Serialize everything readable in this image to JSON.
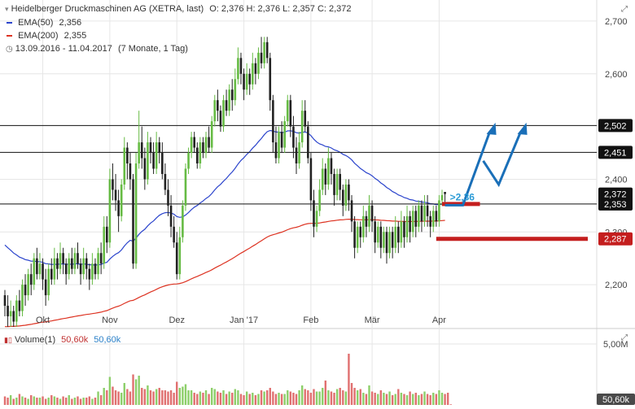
{
  "header": {
    "instrument": "Heidelberger Druckmaschinen AG (XETRA, last)",
    "ohlc": "O: 2,376  H: 2,376  L: 2,357  C: 2,372",
    "ema50_label": "EMA(50)",
    "ema50_value": "2,356",
    "ema200_label": "EMA(200)",
    "ema200_value": "2,355",
    "period": "13.09.2016 - 11.04.2017",
    "period_note": "(7 Monate, 1 Tag)"
  },
  "volume_panel": {
    "label": "Volume(1)",
    "value_red": "50,60k",
    "value_blue": "50,60k"
  },
  "colors": {
    "up": "#66bb44",
    "down": "#222222",
    "ema50": "#2b44cc",
    "ema200": "#dd3322",
    "level_line": "#111111",
    "red_marker": "#c41e1e",
    "arrow": "#1a6fb8",
    "arrow_text": "#2a9bd6",
    "grid": "#e6e6e6"
  },
  "chart_data": {
    "type": "candlestick",
    "ylim": [
      2.12,
      2.74
    ],
    "y_ticks": [
      {
        "v": 2.2,
        "label": "2,200"
      },
      {
        "v": 2.3,
        "label": "2,300"
      },
      {
        "v": 2.4,
        "label": "2,400"
      },
      {
        "v": 2.6,
        "label": "2,600"
      },
      {
        "v": 2.7,
        "label": "2,700"
      }
    ],
    "x_labels": [
      {
        "i": 13,
        "label": "Okt"
      },
      {
        "i": 36,
        "label": "Nov"
      },
      {
        "i": 59,
        "label": "Dez"
      },
      {
        "i": 82,
        "label": "Jan '17"
      },
      {
        "i": 105,
        "label": "Feb"
      },
      {
        "i": 126,
        "label": "Mär"
      },
      {
        "i": 149,
        "label": "Apr"
      }
    ],
    "horizontal_lines": [
      {
        "value": 2.502,
        "label": "2,502"
      },
      {
        "value": 2.451,
        "label": "2,451"
      },
      {
        "value": 2.353,
        "label": "2,353"
      }
    ],
    "price_badges": [
      {
        "value": 2.372,
        "label": "2,372"
      },
      {
        "value": 2.287,
        "label": "2,287"
      }
    ],
    "annotation": {
      "text": ">2,36",
      "level": 2.36
    },
    "red_markers": [
      {
        "from_i": 150,
        "to_i": 163,
        "value": 2.353
      },
      {
        "from_i": 148,
        "to_i": 200,
        "value": 2.287
      }
    ],
    "ema50_label": "EMA(50)",
    "ema200_label": "EMA(200)",
    "candles": [
      [
        2.18,
        2.16,
        2.19,
        2.14
      ],
      [
        2.16,
        2.14,
        2.18,
        2.12
      ],
      [
        2.14,
        2.15,
        2.17,
        2.12
      ],
      [
        2.15,
        2.13,
        2.16,
        2.12
      ],
      [
        2.13,
        2.17,
        2.18,
        2.12
      ],
      [
        2.17,
        2.15,
        2.19,
        2.14
      ],
      [
        2.15,
        2.2,
        2.21,
        2.14
      ],
      [
        2.2,
        2.18,
        2.22,
        2.16
      ],
      [
        2.18,
        2.22,
        2.23,
        2.17
      ],
      [
        2.22,
        2.2,
        2.24,
        2.18
      ],
      [
        2.2,
        2.25,
        2.26,
        2.19
      ],
      [
        2.25,
        2.22,
        2.27,
        2.21
      ],
      [
        2.22,
        2.24,
        2.26,
        2.21
      ],
      [
        2.24,
        2.21,
        2.25,
        2.19
      ],
      [
        2.21,
        2.18,
        2.23,
        2.16
      ],
      [
        2.18,
        2.23,
        2.24,
        2.17
      ],
      [
        2.23,
        2.21,
        2.25,
        2.2
      ],
      [
        2.21,
        2.25,
        2.27,
        2.2
      ],
      [
        2.25,
        2.23,
        2.26,
        2.21
      ],
      [
        2.23,
        2.26,
        2.28,
        2.22
      ],
      [
        2.26,
        2.24,
        2.27,
        2.22
      ],
      [
        2.24,
        2.22,
        2.25,
        2.2
      ],
      [
        2.22,
        2.25,
        2.26,
        2.21
      ],
      [
        2.25,
        2.23,
        2.27,
        2.22
      ],
      [
        2.23,
        2.26,
        2.27,
        2.22
      ],
      [
        2.26,
        2.24,
        2.28,
        2.23
      ],
      [
        2.24,
        2.22,
        2.25,
        2.2
      ],
      [
        2.22,
        2.25,
        2.27,
        2.21
      ],
      [
        2.25,
        2.23,
        2.26,
        2.21
      ],
      [
        2.23,
        2.21,
        2.24,
        2.19
      ],
      [
        2.21,
        2.24,
        2.26,
        2.2
      ],
      [
        2.24,
        2.22,
        2.25,
        2.21
      ],
      [
        2.22,
        2.26,
        2.27,
        2.21
      ],
      [
        2.26,
        2.24,
        2.28,
        2.22
      ],
      [
        2.24,
        2.31,
        2.33,
        2.23
      ],
      [
        2.31,
        2.28,
        2.33,
        2.26
      ],
      [
        2.28,
        2.4,
        2.42,
        2.27
      ],
      [
        2.4,
        2.38,
        2.43,
        2.36
      ],
      [
        2.38,
        2.36,
        2.41,
        2.34
      ],
      [
        2.36,
        2.33,
        2.38,
        2.3
      ],
      [
        2.33,
        2.39,
        2.4,
        2.32
      ],
      [
        2.39,
        2.46,
        2.48,
        2.38
      ],
      [
        2.46,
        2.43,
        2.47,
        2.4
      ],
      [
        2.43,
        2.4,
        2.45,
        2.38
      ],
      [
        2.4,
        2.24,
        2.41,
        2.23
      ],
      [
        2.24,
        2.43,
        2.45,
        2.23
      ],
      [
        2.43,
        2.47,
        2.53,
        2.42
      ],
      [
        2.47,
        2.44,
        2.5,
        2.42
      ],
      [
        2.44,
        2.4,
        2.46,
        2.38
      ],
      [
        2.4,
        2.47,
        2.49,
        2.39
      ],
      [
        2.47,
        2.45,
        2.48,
        2.43
      ],
      [
        2.45,
        2.42,
        2.47,
        2.41
      ],
      [
        2.42,
        2.47,
        2.49,
        2.41
      ],
      [
        2.47,
        2.45,
        2.48,
        2.43
      ],
      [
        2.45,
        2.41,
        2.47,
        2.4
      ],
      [
        2.41,
        2.38,
        2.43,
        2.37
      ],
      [
        2.38,
        2.35,
        2.4,
        2.33
      ],
      [
        2.35,
        2.31,
        2.37,
        2.29
      ],
      [
        2.31,
        2.28,
        2.33,
        2.27
      ],
      [
        2.28,
        2.22,
        2.3,
        2.21
      ],
      [
        2.22,
        2.29,
        2.31,
        2.21
      ],
      [
        2.29,
        2.35,
        2.36,
        2.28
      ],
      [
        2.35,
        2.42,
        2.43,
        2.34
      ],
      [
        2.42,
        2.45,
        2.46,
        2.41
      ],
      [
        2.45,
        2.48,
        2.49,
        2.44
      ],
      [
        2.48,
        2.46,
        2.49,
        2.45
      ],
      [
        2.46,
        2.43,
        2.47,
        2.42
      ],
      [
        2.43,
        2.47,
        2.48,
        2.42
      ],
      [
        2.47,
        2.45,
        2.48,
        2.44
      ],
      [
        2.45,
        2.48,
        2.49,
        2.44
      ],
      [
        2.48,
        2.46,
        2.5,
        2.45
      ],
      [
        2.46,
        2.51,
        2.52,
        2.45
      ],
      [
        2.51,
        2.55,
        2.56,
        2.5
      ],
      [
        2.55,
        2.53,
        2.57,
        2.51
      ],
      [
        2.53,
        2.5,
        2.54,
        2.49
      ],
      [
        2.5,
        2.55,
        2.56,
        2.49
      ],
      [
        2.55,
        2.53,
        2.57,
        2.52
      ],
      [
        2.53,
        2.57,
        2.58,
        2.52
      ],
      [
        2.57,
        2.55,
        2.59,
        2.53
      ],
      [
        2.55,
        2.59,
        2.61,
        2.54
      ],
      [
        2.59,
        2.63,
        2.65,
        2.58
      ],
      [
        2.63,
        2.6,
        2.64,
        2.58
      ],
      [
        2.6,
        2.57,
        2.61,
        2.55
      ],
      [
        2.57,
        2.6,
        2.62,
        2.56
      ],
      [
        2.6,
        2.58,
        2.61,
        2.56
      ],
      [
        2.58,
        2.62,
        2.64,
        2.57
      ],
      [
        2.62,
        2.6,
        2.63,
        2.58
      ],
      [
        2.6,
        2.64,
        2.65,
        2.59
      ],
      [
        2.64,
        2.62,
        2.67,
        2.61
      ],
      [
        2.62,
        2.66,
        2.67,
        2.61
      ],
      [
        2.66,
        2.63,
        2.67,
        2.62
      ],
      [
        2.63,
        2.55,
        2.64,
        2.53
      ],
      [
        2.55,
        2.47,
        2.56,
        2.45
      ],
      [
        2.47,
        2.44,
        2.5,
        2.43
      ],
      [
        2.44,
        2.49,
        2.5,
        2.43
      ],
      [
        2.49,
        2.46,
        2.51,
        2.45
      ],
      [
        2.46,
        2.51,
        2.52,
        2.45
      ],
      [
        2.51,
        2.55,
        2.56,
        2.5
      ],
      [
        2.55,
        2.5,
        2.56,
        2.48
      ],
      [
        2.5,
        2.46,
        2.52,
        2.44
      ],
      [
        2.46,
        2.43,
        2.48,
        2.41
      ],
      [
        2.43,
        2.47,
        2.49,
        2.42
      ],
      [
        2.47,
        2.53,
        2.55,
        2.46
      ],
      [
        2.53,
        2.5,
        2.55,
        2.49
      ],
      [
        2.5,
        2.44,
        2.51,
        2.43
      ],
      [
        2.44,
        2.36,
        2.45,
        2.34
      ],
      [
        2.36,
        2.31,
        2.38,
        2.29
      ],
      [
        2.31,
        2.34,
        2.35,
        2.3
      ],
      [
        2.34,
        2.38,
        2.4,
        2.33
      ],
      [
        2.38,
        2.42,
        2.44,
        2.37
      ],
      [
        2.42,
        2.39,
        2.43,
        2.37
      ],
      [
        2.39,
        2.44,
        2.46,
        2.38
      ],
      [
        2.44,
        2.41,
        2.45,
        2.39
      ],
      [
        2.41,
        2.37,
        2.42,
        2.35
      ],
      [
        2.37,
        2.41,
        2.42,
        2.36
      ],
      [
        2.41,
        2.38,
        2.42,
        2.36
      ],
      [
        2.38,
        2.35,
        2.39,
        2.33
      ],
      [
        2.35,
        2.39,
        2.4,
        2.34
      ],
      [
        2.39,
        2.36,
        2.4,
        2.34
      ],
      [
        2.36,
        2.32,
        2.37,
        2.3
      ],
      [
        2.32,
        2.27,
        2.33,
        2.25
      ],
      [
        2.27,
        2.31,
        2.32,
        2.26
      ],
      [
        2.31,
        2.29,
        2.32,
        2.27
      ],
      [
        2.29,
        2.33,
        2.35,
        2.28
      ],
      [
        2.33,
        2.31,
        2.34,
        2.29
      ],
      [
        2.31,
        2.35,
        2.37,
        2.3
      ],
      [
        2.35,
        2.32,
        2.36,
        2.3
      ],
      [
        2.32,
        2.28,
        2.33,
        2.26
      ],
      [
        2.28,
        2.31,
        2.32,
        2.27
      ],
      [
        2.31,
        2.27,
        2.32,
        2.25
      ],
      [
        2.27,
        2.3,
        2.31,
        2.26
      ],
      [
        2.3,
        2.26,
        2.31,
        2.24
      ],
      [
        2.26,
        2.3,
        2.31,
        2.25
      ],
      [
        2.3,
        2.27,
        2.31,
        2.25
      ],
      [
        2.27,
        2.31,
        2.33,
        2.26
      ],
      [
        2.31,
        2.28,
        2.32,
        2.26
      ],
      [
        2.28,
        2.32,
        2.34,
        2.27
      ],
      [
        2.32,
        2.29,
        2.33,
        2.27
      ],
      [
        2.29,
        2.33,
        2.35,
        2.28
      ],
      [
        2.33,
        2.3,
        2.34,
        2.28
      ],
      [
        2.3,
        2.34,
        2.35,
        2.29
      ],
      [
        2.34,
        2.31,
        2.35,
        2.29
      ],
      [
        2.31,
        2.35,
        2.36,
        2.3
      ],
      [
        2.35,
        2.32,
        2.36,
        2.3
      ],
      [
        2.32,
        2.35,
        2.37,
        2.31
      ],
      [
        2.35,
        2.33,
        2.37,
        2.31
      ],
      [
        2.33,
        2.31,
        2.34,
        2.29
      ],
      [
        2.31,
        2.34,
        2.35,
        2.3
      ],
      [
        2.34,
        2.32,
        2.35,
        2.31
      ],
      [
        2.32,
        2.36,
        2.37,
        2.31
      ],
      [
        2.36,
        2.37,
        2.38,
        2.35
      ],
      [
        2.376,
        2.372,
        2.376,
        2.357
      ]
    ],
    "volume": {
      "ylim": [
        0,
        6
      ],
      "y_ticks": [
        {
          "v": 5,
          "label": "5,00M"
        }
      ],
      "last_label": "50,60k",
      "values": [
        0.7,
        0.6,
        0.8,
        0.5,
        0.6,
        0.9,
        0.7,
        0.6,
        0.5,
        0.8,
        0.7,
        0.6,
        0.6,
        0.7,
        0.5,
        0.6,
        0.8,
        0.7,
        0.6,
        0.5,
        0.7,
        0.6,
        0.8,
        0.5,
        0.6,
        0.7,
        0.5,
        0.6,
        0.6,
        0.7,
        0.5,
        0.6,
        1.1,
        0.8,
        1.4,
        1.2,
        2.3,
        1.5,
        1.2,
        1.1,
        1.0,
        1.8,
        1.3,
        1.1,
        2.5,
        2.1,
        2.4,
        1.4,
        1.3,
        1.6,
        1.2,
        1.1,
        1.3,
        1.4,
        1.2,
        1.2,
        1.1,
        1.2,
        1.0,
        1.9,
        1.4,
        1.5,
        1.7,
        1.2,
        1.2,
        1.0,
        0.9,
        1.1,
        1.0,
        1.2,
        0.9,
        1.4,
        1.3,
        1.1,
        1.0,
        1.2,
        0.9,
        1.1,
        1.0,
        1.3,
        1.2,
        0.9,
        0.8,
        1.1,
        0.9,
        1.0,
        0.8,
        0.9,
        1.2,
        1.1,
        1.2,
        1.4,
        1.1,
        0.9,
        1.0,
        0.9,
        0.9,
        1.2,
        1.1,
        1.0,
        0.9,
        1.2,
        1.6,
        1.3,
        1.2,
        1.0,
        1.3,
        1.1,
        1.1,
        1.4,
        2.0,
        1.2,
        1.1,
        1.0,
        1.3,
        1.4,
        1.2,
        1.1,
        4.2,
        1.8,
        1.4,
        1.2,
        1.3,
        1.0,
        0.9,
        1.6,
        1.1,
        1.0,
        0.9,
        1.2,
        1.0,
        0.9,
        1.1,
        0.8,
        0.9,
        1.3,
        1.0,
        0.9,
        0.8,
        1.1,
        0.9,
        1.0,
        0.8,
        0.9,
        1.1,
        0.9,
        0.8,
        1.0,
        0.9,
        1.2,
        1.0,
        0.9,
        1.0,
        0.05
      ]
    }
  }
}
